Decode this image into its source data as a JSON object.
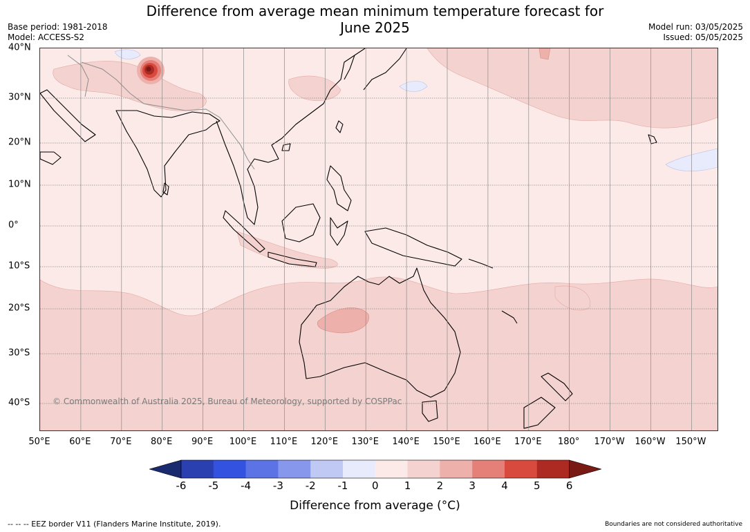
{
  "title": {
    "line1": "Difference from average mean minimum temperature forecast for",
    "line2": "June 2025"
  },
  "meta": {
    "base_period": "Base period: 1981-2018",
    "model": "Model: ACCESS-S2",
    "model_run": "Model run: 03/05/2025",
    "issued": "Issued: 05/05/2025"
  },
  "map": {
    "lon_labels": [
      "50°E",
      "60°E",
      "70°E",
      "80°E",
      "90°E",
      "100°E",
      "110°E",
      "120°E",
      "130°E",
      "140°E",
      "150°E",
      "160°E",
      "170°E",
      "180°",
      "170°W",
      "160°W",
      "150°W"
    ],
    "lat_labels": [
      "40°N",
      "30°N",
      "20°N",
      "10°N",
      "0°",
      "10°S",
      "20°S",
      "30°S",
      "40°S"
    ],
    "copyright": "© Commonwealth of Australia 2025, Bureau of Meteorology, supported by COSPPac"
  },
  "colorbar": {
    "ticks": [
      "-6",
      "-5",
      "-4",
      "-3",
      "-2",
      "-1",
      "0",
      "1",
      "2",
      "3",
      "4",
      "5",
      "6"
    ],
    "label": "Difference from average (°C)",
    "colors": [
      "#1a2a6e",
      "#2a3fb0",
      "#3452e0",
      "#5c73e6",
      "#8798ec",
      "#c0c8f4",
      "#e8ebfb",
      "#fbeae8",
      "#f4d2cf",
      "#eeb0ab",
      "#e48078",
      "#d84a3e",
      "#ad2a22",
      "#7a1a14"
    ]
  },
  "footer": {
    "eez": "--  --  -- EEZ border V11 (Flanders Marine Institute, 2019).",
    "boundaries": "Boundaries are not considered authoritative"
  }
}
